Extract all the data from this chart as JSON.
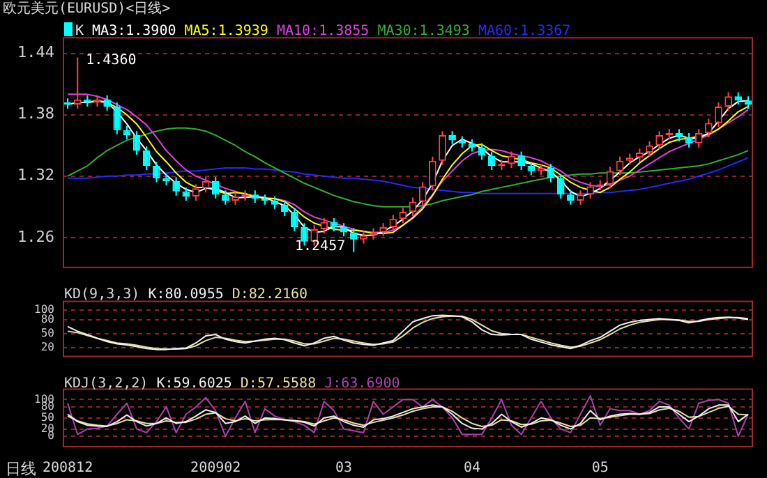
{
  "chart_data": [
    {
      "type": "candlestick",
      "title": "欧元美元(EURUSD)<日线>",
      "categories": [
        "200812",
        null,
        null,
        null,
        null,
        null,
        null,
        null,
        null,
        null,
        null,
        null,
        null,
        null,
        null,
        "200902",
        null,
        null,
        null,
        null,
        null,
        null,
        null,
        null,
        null,
        null,
        null,
        null,
        "03",
        null,
        null,
        null,
        null,
        null,
        null,
        null,
        null,
        null,
        null,
        null,
        null,
        "04",
        null,
        null,
        null,
        null,
        null,
        null,
        null,
        null,
        null,
        null,
        null,
        null,
        "05",
        null,
        null,
        null,
        null,
        null,
        null,
        null,
        null,
        null,
        null,
        null,
        null,
        null,
        null,
        null
      ],
      "ylim": [
        1.23,
        1.456
      ],
      "yticks": [
        1.26,
        1.32,
        1.38,
        1.44
      ],
      "grid": "y",
      "legend": "top left",
      "tick_labels": "y",
      "annotations": [
        "1.4360",
        "1.2457"
      ],
      "series": [
        {
          "name": "K",
          "color": "#e0e0e0",
          "ohlc": [
            [
              1.392,
              1.396,
              1.386,
              1.39
            ],
            [
              1.39,
              1.436,
              1.386,
              1.395
            ],
            [
              1.395,
              1.399,
              1.388,
              1.392
            ],
            [
              1.392,
              1.399,
              1.388,
              1.395
            ],
            [
              1.395,
              1.399,
              1.384,
              1.388
            ],
            [
              1.388,
              1.392,
              1.361,
              1.365
            ],
            [
              1.365,
              1.369,
              1.356,
              1.36
            ],
            [
              1.36,
              1.364,
              1.341,
              1.345
            ],
            [
              1.345,
              1.349,
              1.326,
              1.33
            ],
            [
              1.33,
              1.334,
              1.314,
              1.318
            ],
            [
              1.318,
              1.322,
              1.311,
              1.315
            ],
            [
              1.315,
              1.319,
              1.301,
              1.305
            ],
            [
              1.305,
              1.309,
              1.296,
              1.3
            ],
            [
              1.3,
              1.312,
              1.296,
              1.308
            ],
            [
              1.308,
              1.319,
              1.304,
              1.315
            ],
            [
              1.315,
              1.319,
              1.298,
              1.302
            ],
            [
              1.302,
              1.306,
              1.292,
              1.296
            ],
            [
              1.296,
              1.304,
              1.292,
              1.3
            ],
            [
              1.3,
              1.306,
              1.296,
              1.302
            ],
            [
              1.302,
              1.306,
              1.294,
              1.298
            ],
            [
              1.298,
              1.302,
              1.292,
              1.296
            ],
            [
              1.296,
              1.3,
              1.288,
              1.292
            ],
            [
              1.292,
              1.296,
              1.281,
              1.285
            ],
            [
              1.285,
              1.289,
              1.266,
              1.27
            ],
            [
              1.27,
              1.274,
              1.252,
              1.256
            ],
            [
              1.256,
              1.272,
              1.252,
              1.268
            ],
            [
              1.268,
              1.279,
              1.264,
              1.275
            ],
            [
              1.275,
              1.279,
              1.266,
              1.27
            ],
            [
              1.27,
              1.274,
              1.261,
              1.265
            ],
            [
              1.265,
              1.269,
              1.2457,
              1.258
            ],
            [
              1.258,
              1.266,
              1.254,
              1.262
            ],
            [
              1.262,
              1.269,
              1.258,
              1.265
            ],
            [
              1.265,
              1.274,
              1.261,
              1.27
            ],
            [
              1.27,
              1.282,
              1.266,
              1.278
            ],
            [
              1.278,
              1.289,
              1.274,
              1.285
            ],
            [
              1.285,
              1.299,
              1.281,
              1.295
            ],
            [
              1.295,
              1.314,
              1.291,
              1.31
            ],
            [
              1.31,
              1.339,
              1.306,
              1.335
            ],
            [
              1.335,
              1.364,
              1.331,
              1.36
            ],
            [
              1.36,
              1.364,
              1.351,
              1.355
            ],
            [
              1.355,
              1.359,
              1.348,
              1.352
            ],
            [
              1.352,
              1.356,
              1.344,
              1.348
            ],
            [
              1.348,
              1.352,
              1.336,
              1.34
            ],
            [
              1.34,
              1.344,
              1.326,
              1.33
            ],
            [
              1.33,
              1.336,
              1.326,
              1.332
            ],
            [
              1.332,
              1.344,
              1.328,
              1.34
            ],
            [
              1.34,
              1.344,
              1.326,
              1.33
            ],
            [
              1.33,
              1.334,
              1.321,
              1.325
            ],
            [
              1.325,
              1.332,
              1.321,
              1.328
            ],
            [
              1.328,
              1.332,
              1.314,
              1.318
            ],
            [
              1.318,
              1.322,
              1.298,
              1.302
            ],
            [
              1.302,
              1.306,
              1.292,
              1.296
            ],
            [
              1.296,
              1.306,
              1.292,
              1.302
            ],
            [
              1.302,
              1.314,
              1.298,
              1.31
            ],
            [
              1.31,
              1.316,
              1.306,
              1.312
            ],
            [
              1.312,
              1.329,
              1.308,
              1.325
            ],
            [
              1.325,
              1.339,
              1.321,
              1.335
            ],
            [
              1.335,
              1.342,
              1.331,
              1.338
            ],
            [
              1.338,
              1.347,
              1.334,
              1.343
            ],
            [
              1.343,
              1.354,
              1.339,
              1.35
            ],
            [
              1.35,
              1.364,
              1.346,
              1.36
            ],
            [
              1.36,
              1.366,
              1.356,
              1.362
            ],
            [
              1.362,
              1.366,
              1.354,
              1.358
            ],
            [
              1.358,
              1.362,
              1.348,
              1.352
            ],
            [
              1.352,
              1.366,
              1.348,
              1.362
            ],
            [
              1.362,
              1.376,
              1.358,
              1.372
            ],
            [
              1.372,
              1.392,
              1.368,
              1.388
            ],
            [
              1.388,
              1.402,
              1.384,
              1.398
            ],
            [
              1.398,
              1.402,
              1.39,
              1.394
            ],
            [
              1.394,
              1.398,
              1.386,
              1.39
            ]
          ],
          "colors": [
            "#00ffff",
            "#ff4040",
            "#00ffff",
            "#ff4040",
            "#00ffff",
            "#00ffff",
            "#00ffff",
            "#00ffff",
            "#00ffff",
            "#00ffff",
            "#00ffff",
            "#00ffff",
            "#00ffff",
            "#ff4040",
            "#ff4040",
            "#00ffff",
            "#00ffff",
            "#ff4040",
            "#ff4040",
            "#00ffff",
            "#00ffff",
            "#00ffff",
            "#00ffff",
            "#00ffff",
            "#00ffff",
            "#ff4040",
            "#ff4040",
            "#00ffff",
            "#00ffff",
            "#00ffff",
            "#ff4040",
            "#ff4040",
            "#ff4040",
            "#ff4040",
            "#ff4040",
            "#ff4040",
            "#ff4040",
            "#ff4040",
            "#ff4040",
            "#00ffff",
            "#00ffff",
            "#00ffff",
            "#00ffff",
            "#00ffff",
            "#ff4040",
            "#ff4040",
            "#00ffff",
            "#00ffff",
            "#ff4040",
            "#00ffff",
            "#00ffff",
            "#00ffff",
            "#ff4040",
            "#ff4040",
            "#ff4040",
            "#ff4040",
            "#ff4040",
            "#ff4040",
            "#ff4040",
            "#ff4040",
            "#ff4040",
            "#ff4040",
            "#00ffff",
            "#00ffff",
            "#ff4040",
            "#ff4040",
            "#ff4040",
            "#ff4040",
            "#00ffff",
            "#00ffff"
          ]
        },
        {
          "name": "MA3:1.3900",
          "type": "line",
          "color": "#ffffff",
          "values": [
            1.39,
            1.392,
            1.392,
            1.394,
            1.392,
            1.383,
            1.371,
            1.357,
            1.345,
            1.331,
            1.321,
            1.313,
            1.307,
            1.304,
            1.308,
            1.308,
            1.304,
            1.299,
            1.299,
            1.3,
            1.299,
            1.295,
            1.291,
            1.282,
            1.27,
            1.265,
            1.266,
            1.271,
            1.27,
            1.264,
            1.262,
            1.262,
            1.266,
            1.271,
            1.278,
            1.286,
            1.297,
            1.313,
            1.335,
            1.35,
            1.356,
            1.352,
            1.347,
            1.339,
            1.334,
            1.334,
            1.334,
            1.332,
            1.328,
            1.324,
            1.316,
            1.305,
            1.3,
            1.303,
            1.308,
            1.316,
            1.324,
            1.333,
            1.339,
            1.344,
            1.351,
            1.357,
            1.36,
            1.357,
            1.357,
            1.362,
            1.374,
            1.386,
            1.393,
            1.394
          ]
        },
        {
          "name": "MA5:1.3939",
          "type": "line",
          "color": "#ffff00",
          "values": [
            null,
            null,
            1.392,
            1.393,
            1.392,
            1.387,
            1.38,
            1.371,
            1.358,
            1.344,
            1.334,
            1.323,
            1.314,
            1.309,
            1.309,
            1.306,
            1.303,
            1.304,
            1.303,
            1.3,
            1.298,
            1.298,
            1.295,
            1.288,
            1.28,
            1.274,
            1.271,
            1.268,
            1.267,
            1.267,
            1.266,
            1.264,
            1.264,
            1.265,
            1.272,
            1.279,
            1.288,
            1.301,
            1.317,
            1.331,
            1.342,
            1.35,
            1.351,
            1.345,
            1.34,
            1.338,
            1.336,
            1.333,
            1.331,
            1.328,
            1.321,
            1.314,
            1.309,
            1.306,
            1.304,
            1.309,
            1.317,
            1.324,
            1.333,
            1.34,
            1.347,
            1.353,
            1.356,
            1.357,
            1.359,
            1.361,
            1.366,
            1.374,
            1.383,
            1.388
          ]
        },
        {
          "name": "MA10:1.3855",
          "type": "line",
          "color": "#e040e0",
          "values": [
            1.4,
            1.4,
            1.4,
            1.398,
            1.395,
            1.39,
            1.385,
            1.378,
            1.37,
            1.358,
            1.345,
            1.335,
            1.326,
            1.32,
            1.316,
            1.312,
            1.308,
            1.305,
            1.302,
            1.3,
            1.299,
            1.298,
            1.296,
            1.292,
            1.285,
            1.28,
            1.277,
            1.274,
            1.271,
            1.268,
            1.266,
            1.265,
            1.265,
            1.267,
            1.272,
            1.28,
            1.29,
            1.302,
            1.315,
            1.325,
            1.335,
            1.342,
            1.345,
            1.346,
            1.345,
            1.342,
            1.34,
            1.338,
            1.335,
            1.33,
            1.325,
            1.318,
            1.314,
            1.311,
            1.31,
            1.312,
            1.316,
            1.32,
            1.326,
            1.332,
            1.338,
            1.344,
            1.348,
            1.352,
            1.356,
            1.36,
            1.366,
            1.372,
            1.378,
            1.385
          ]
        },
        {
          "name": "MA30:1.3493",
          "type": "line",
          "color": "#30b030",
          "values": [
            1.32,
            1.325,
            1.33,
            1.338,
            1.345,
            1.35,
            1.355,
            1.358,
            1.361,
            1.364,
            1.366,
            1.367,
            1.367,
            1.366,
            1.364,
            1.36,
            1.355,
            1.35,
            1.344,
            1.339,
            1.333,
            1.328,
            1.323,
            1.318,
            1.313,
            1.309,
            1.305,
            1.301,
            1.298,
            1.295,
            1.293,
            1.291,
            1.29,
            1.29,
            1.29,
            1.29,
            1.291,
            1.293,
            1.296,
            1.298,
            1.3,
            1.302,
            1.305,
            1.307,
            1.309,
            1.311,
            1.313,
            1.315,
            1.317,
            1.319,
            1.32,
            1.321,
            1.322,
            1.322,
            1.323,
            1.323,
            1.323,
            1.323,
            1.324,
            1.325,
            1.326,
            1.327,
            1.328,
            1.329,
            1.33,
            1.332,
            1.335,
            1.338,
            1.341,
            1.345
          ]
        },
        {
          "name": "MA60:1.3367",
          "type": "line",
          "color": "#2828ff",
          "values": [
            1.318,
            1.318,
            1.318,
            1.319,
            1.32,
            1.32,
            1.321,
            1.321,
            1.322,
            1.322,
            1.323,
            1.324,
            1.325,
            1.325,
            1.326,
            1.327,
            1.328,
            1.328,
            1.328,
            1.327,
            1.327,
            1.326,
            1.325,
            1.324,
            1.322,
            1.321,
            1.32,
            1.319,
            1.318,
            1.318,
            1.317,
            1.316,
            1.315,
            1.313,
            1.311,
            1.309,
            1.308,
            1.307,
            1.306,
            1.305,
            1.304,
            1.304,
            1.303,
            1.303,
            1.303,
            1.303,
            1.303,
            1.303,
            1.303,
            1.303,
            1.303,
            1.303,
            1.303,
            1.303,
            1.304,
            1.304,
            1.305,
            1.306,
            1.307,
            1.309,
            1.311,
            1.313,
            1.315,
            1.317,
            1.32,
            1.323,
            1.326,
            1.33,
            1.334,
            1.338
          ]
        }
      ]
    },
    {
      "type": "line",
      "title": "KD(9,3,3)",
      "categories": [
        "200812",
        null,
        null,
        null,
        null,
        null,
        null,
        null,
        null,
        null,
        null,
        null,
        null,
        null,
        null,
        "200902",
        null,
        null,
        null,
        null,
        null,
        null,
        null,
        null,
        null,
        null,
        null,
        null,
        "03",
        null,
        null,
        null,
        null,
        null,
        null,
        null,
        null,
        null,
        null,
        null,
        null,
        "04",
        null,
        null,
        null,
        null,
        null,
        null,
        null,
        null,
        null,
        null,
        null,
        null,
        "05",
        null,
        null,
        null,
        null,
        null,
        null,
        null,
        null,
        null,
        null,
        null,
        null,
        null,
        null,
        null
      ],
      "ylim": [
        0,
        120
      ],
      "yticks": [
        20,
        50,
        80,
        100
      ],
      "grid": "y",
      "legend": "top left",
      "tick_labels": "y",
      "series": [
        {
          "name": "K:80.0955",
          "color": "#f0f0f0",
          "values": [
            65,
            55,
            48,
            40,
            33,
            28,
            26,
            22,
            18,
            16,
            16,
            18,
            19,
            30,
            45,
            48,
            38,
            33,
            30,
            34,
            38,
            40,
            37,
            30,
            24,
            30,
            40,
            44,
            36,
            30,
            27,
            25,
            30,
            35,
            55,
            75,
            82,
            88,
            89,
            88,
            86,
            75,
            58,
            48,
            47,
            48,
            48,
            38,
            32,
            26,
            22,
            18,
            25,
            35,
            42,
            55,
            68,
            74,
            78,
            80,
            82,
            80,
            78,
            73,
            77,
            82,
            84,
            85,
            83,
            80
          ]
        },
        {
          "name": "D:82.2160",
          "color": "#e8e0a0",
          "values": [
            55,
            52,
            46,
            40,
            35,
            30,
            28,
            25,
            21,
            18,
            17,
            17,
            18,
            24,
            35,
            42,
            40,
            36,
            33,
            34,
            36,
            38,
            38,
            34,
            28,
            28,
            34,
            40,
            38,
            34,
            30,
            27,
            28,
            32,
            45,
            62,
            74,
            82,
            86,
            87,
            87,
            80,
            68,
            56,
            50,
            48,
            48,
            42,
            36,
            30,
            25,
            21,
            23,
            30,
            37,
            48,
            60,
            68,
            74,
            77,
            80,
            80,
            79,
            76,
            76,
            80,
            82,
            84,
            84,
            82
          ]
        }
      ]
    },
    {
      "type": "line",
      "title": "KDJ(3,2,2)",
      "xlabel": "日线",
      "categories": [
        "200812",
        null,
        null,
        null,
        null,
        null,
        null,
        null,
        null,
        null,
        null,
        null,
        null,
        null,
        null,
        "200902",
        null,
        null,
        null,
        null,
        null,
        null,
        null,
        null,
        null,
        null,
        null,
        null,
        "03",
        null,
        null,
        null,
        null,
        null,
        null,
        null,
        null,
        null,
        null,
        null,
        null,
        "04",
        null,
        null,
        null,
        null,
        null,
        null,
        null,
        null,
        null,
        null,
        null,
        null,
        "05",
        null,
        null,
        null,
        null,
        null,
        null,
        null,
        null,
        null,
        null,
        null,
        null,
        null,
        null,
        null
      ],
      "ylim": [
        -30,
        130
      ],
      "yticks": [
        0,
        20,
        50,
        80,
        100
      ],
      "grid": "y",
      "legend": "top left",
      "series": [
        {
          "name": "K:59.6025",
          "color": "#f0f0f0",
          "values": [
            60,
            40,
            30,
            28,
            27,
            40,
            58,
            40,
            28,
            35,
            50,
            35,
            40,
            55,
            72,
            65,
            35,
            40,
            55,
            35,
            50,
            48,
            45,
            42,
            38,
            28,
            50,
            55,
            40,
            30,
            25,
            45,
            48,
            55,
            65,
            75,
            80,
            85,
            80,
            60,
            35,
            22,
            20,
            35,
            60,
            40,
            25,
            35,
            50,
            45,
            30,
            20,
            35,
            70,
            45,
            55,
            60,
            62,
            60,
            65,
            80,
            80,
            60,
            40,
            55,
            75,
            85,
            85,
            40,
            60
          ]
        },
        {
          "name": "D:57.5588",
          "color": "#e8e0a0",
          "values": [
            55,
            42,
            34,
            30,
            28,
            35,
            45,
            42,
            35,
            35,
            42,
            38,
            38,
            47,
            60,
            64,
            48,
            42,
            48,
            42,
            45,
            46,
            45,
            43,
            40,
            33,
            42,
            50,
            45,
            36,
            30,
            38,
            44,
            50,
            58,
            68,
            75,
            80,
            80,
            68,
            50,
            35,
            27,
            30,
            45,
            42,
            32,
            33,
            42,
            44,
            36,
            27,
            30,
            50,
            48,
            52,
            56,
            60,
            60,
            62,
            72,
            76,
            68,
            52,
            54,
            65,
            76,
            82,
            60,
            58
          ]
        },
        {
          "name": "J:63.6900",
          "color": "#b040b0",
          "values": [
            90,
            5,
            20,
            22,
            28,
            60,
            90,
            20,
            10,
            40,
            80,
            10,
            60,
            80,
            105,
            70,
            0,
            50,
            95,
            10,
            75,
            55,
            45,
            40,
            30,
            10,
            95,
            70,
            20,
            15,
            10,
            95,
            60,
            80,
            100,
            100,
            80,
            100,
            80,
            50,
            5,
            5,
            5,
            50,
            100,
            30,
            5,
            50,
            95,
            50,
            20,
            10,
            60,
            110,
            30,
            75,
            70,
            70,
            60,
            70,
            95,
            85,
            50,
            20,
            90,
            98,
            100,
            90,
            0,
            60
          ]
        }
      ]
    }
  ]
}
